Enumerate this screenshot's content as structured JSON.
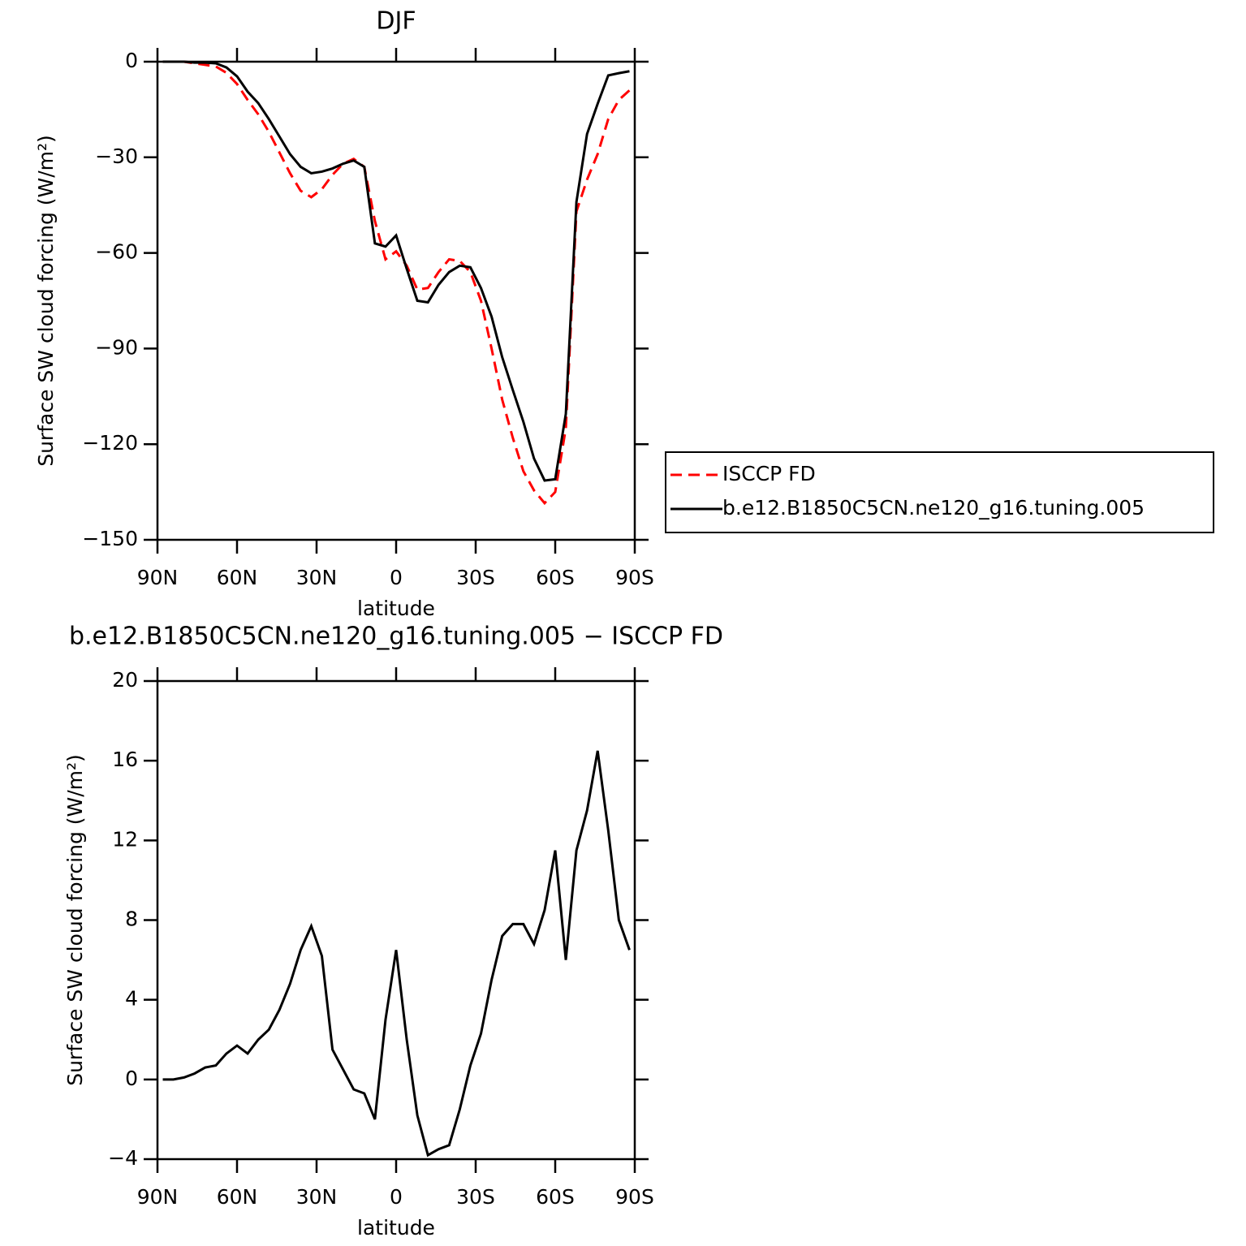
{
  "chart_data": [
    {
      "type": "line",
      "title": "DJF",
      "xlabel": "latitude",
      "ylabel": "Surface SW cloud forcing (W/m²)",
      "x": [
        88,
        84,
        80,
        76,
        72,
        68,
        64,
        60,
        56,
        52,
        48,
        44,
        40,
        36,
        32,
        28,
        24,
        20,
        16,
        12,
        8,
        4,
        0,
        -4,
        -8,
        -12,
        -16,
        -20,
        -24,
        -28,
        -32,
        -36,
        -40,
        -44,
        -48,
        -52,
        -56,
        -60,
        -64,
        -68,
        -72,
        -76,
        -80,
        -84,
        -88
      ],
      "series": [
        {
          "name": "ISCCP FD",
          "color": "#ff0000",
          "style": "dashed",
          "values": [
            0,
            0,
            0,
            -0.5,
            -1,
            -1.5,
            -3.5,
            -7,
            -12,
            -16.5,
            -22,
            -28.5,
            -35,
            -40.5,
            -42.5,
            -40,
            -35.5,
            -32,
            -30.5,
            -33,
            -50,
            -62,
            -59.5,
            -64,
            -71.5,
            -71,
            -66,
            -62,
            -62.5,
            -66,
            -75,
            -90,
            -106,
            -118,
            -128.5,
            -134.5,
            -138.5,
            -135,
            -115,
            -47,
            -37,
            -29,
            -18,
            -12,
            -9
          ]
        },
        {
          "name": "b.e12.B1850C5CN.ne120_g16.tuning.005",
          "color": "#000000",
          "style": "solid",
          "values": [
            0,
            0,
            0,
            -0.3,
            -0.3,
            -0.5,
            -1.8,
            -4.6,
            -9.4,
            -13,
            -18,
            -23.5,
            -29,
            -33,
            -35,
            -34.5,
            -33.5,
            -32,
            -31,
            -33,
            -57,
            -58,
            -54.5,
            -65,
            -75,
            -75.5,
            -70,
            -66,
            -64,
            -64.5,
            -71,
            -80,
            -92.7,
            -103,
            -113,
            -124.5,
            -131.4,
            -131,
            -110.5,
            -44,
            -22.7,
            -13.2,
            -4.3,
            -3.6,
            -3
          ]
        }
      ],
      "xlim": [
        90,
        -90
      ],
      "xticks": [
        {
          "value": 90,
          "label": "90N"
        },
        {
          "value": 60,
          "label": "60N"
        },
        {
          "value": 30,
          "label": "30N"
        },
        0,
        {
          "value": -30,
          "label": "30S"
        },
        {
          "value": -60,
          "label": "60S"
        },
        {
          "value": -90,
          "label": "90S"
        }
      ],
      "ylim": [
        -150,
        0
      ],
      "yticks": [
        {
          "value": -150,
          "label": "−150"
        },
        {
          "value": -120,
          "label": "−120"
        },
        {
          "value": -90,
          "label": "−90"
        },
        {
          "value": -60,
          "label": "−60"
        },
        {
          "value": -30,
          "label": "−30"
        },
        0
      ],
      "legend": "right"
    },
    {
      "type": "line",
      "title": "b.e12.B1850C5CN.ne120_g16.tuning.005 − ISCCP FD",
      "xlabel": "latitude",
      "ylabel": "Surface SW cloud forcing (W/m²)",
      "x": [
        88,
        84,
        80,
        76,
        72,
        68,
        64,
        60,
        56,
        52,
        48,
        44,
        40,
        36,
        32,
        28,
        24,
        20,
        16,
        12,
        8,
        4,
        0,
        -4,
        -8,
        -12,
        -16,
        -20,
        -24,
        -28,
        -32,
        -36,
        -40,
        -44,
        -48,
        -52,
        -56,
        -60,
        -64,
        -68,
        -72,
        -76,
        -80,
        -84,
        -88
      ],
      "color": "#000000",
      "values": [
        0,
        0,
        0.1,
        0.3,
        0.6,
        0.7,
        1.3,
        1.7,
        1.3,
        2,
        2.5,
        3.5,
        4.8,
        6.5,
        7.7,
        6.2,
        1.5,
        0.5,
        -0.5,
        -0.7,
        -2,
        3,
        6.5,
        2,
        -1.8,
        -3.8,
        -3.5,
        -3.3,
        -1.5,
        0.7,
        2.3,
        5,
        7.2,
        7.8,
        7.8,
        6.8,
        8.5,
        11.5,
        6,
        11.5,
        13.5,
        16.5,
        12.5,
        8,
        6.5
      ],
      "xlim": [
        90,
        -90
      ],
      "xticks": [
        {
          "value": 90,
          "label": "90N"
        },
        {
          "value": 60,
          "label": "60N"
        },
        {
          "value": 30,
          "label": "30N"
        },
        0,
        {
          "value": -30,
          "label": "30S"
        },
        {
          "value": -60,
          "label": "60S"
        },
        {
          "value": -90,
          "label": "90S"
        }
      ],
      "ylim": [
        -4,
        20
      ],
      "yticks": [
        {
          "value": -4,
          "label": "−4"
        },
        0,
        4,
        8,
        12,
        16,
        20
      ]
    }
  ]
}
